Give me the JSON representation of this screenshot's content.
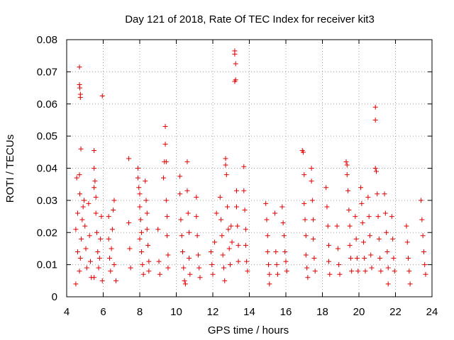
{
  "chart_data": {
    "type": "scatter",
    "title": "Day 121 of 2018, Rate Of TEC Index for receiver kit3",
    "xlabel": "GPS time / hours",
    "ylabel": "ROTI / TECUs",
    "xlim": [
      4,
      24
    ],
    "ylim": [
      0,
      0.08
    ],
    "xticks": [
      4,
      6,
      8,
      10,
      12,
      14,
      16,
      18,
      20,
      22,
      24
    ],
    "xtick_labels": [
      "4",
      "6",
      "8",
      "10",
      "12",
      "14",
      "16",
      "18",
      "20",
      "22",
      "24"
    ],
    "yticks": [
      0,
      0.01,
      0.02,
      0.03,
      0.04,
      0.05,
      0.06,
      0.07,
      0.08
    ],
    "ytick_labels": [
      "0",
      "0.01",
      "0.02",
      "0.03",
      "0.04",
      "0.05",
      "0.06",
      "0.07",
      "0.08"
    ],
    "grid": true,
    "marker": "plus",
    "color": "#e00000",
    "series": [
      {
        "name": "kit3",
        "points": [
          [
            4.5,
            0.004
          ],
          [
            4.5,
            0.021
          ],
          [
            4.55,
            0.037
          ],
          [
            4.6,
            0.014
          ],
          [
            4.6,
            0.026
          ],
          [
            4.7,
            0.0715
          ],
          [
            4.7,
            0.066
          ],
          [
            4.72,
            0.065
          ],
          [
            4.75,
            0.063
          ],
          [
            4.75,
            0.062
          ],
          [
            4.78,
            0.046
          ],
          [
            4.7,
            0.038
          ],
          [
            4.72,
            0.032
          ],
          [
            4.7,
            0.008
          ],
          [
            4.75,
            0.012
          ],
          [
            4.8,
            0.018
          ],
          [
            4.85,
            0.024
          ],
          [
            4.9,
            0.028
          ],
          [
            4.95,
            0.03
          ],
          [
            5.0,
            0.022
          ],
          [
            5.05,
            0.015
          ],
          [
            5.1,
            0.009
          ],
          [
            5.2,
            0.029
          ],
          [
            5.25,
            0.019
          ],
          [
            5.3,
            0.011
          ],
          [
            5.35,
            0.006
          ],
          [
            5.5,
            0.0455
          ],
          [
            5.5,
            0.04
          ],
          [
            5.55,
            0.036
          ],
          [
            5.5,
            0.034
          ],
          [
            5.6,
            0.031
          ],
          [
            5.6,
            0.026
          ],
          [
            5.65,
            0.02
          ],
          [
            5.7,
            0.014
          ],
          [
            5.75,
            0.009
          ],
          [
            5.8,
            0.012
          ],
          [
            5.85,
            0.018
          ],
          [
            5.5,
            0.006
          ],
          [
            5.95,
            0.0625
          ],
          [
            5.9,
            0.025
          ],
          [
            5.95,
            0.005
          ],
          [
            6.3,
            0.025
          ],
          [
            6.3,
            0.018
          ],
          [
            6.35,
            0.012
          ],
          [
            6.4,
            0.008
          ],
          [
            6.45,
            0.015
          ],
          [
            6.5,
            0.021
          ],
          [
            6.55,
            0.027
          ],
          [
            6.6,
            0.03
          ],
          [
            6.6,
            0.01
          ],
          [
            6.7,
            0.005
          ],
          [
            7.4,
            0.043
          ],
          [
            7.4,
            0.023
          ],
          [
            7.45,
            0.015
          ],
          [
            7.5,
            0.009
          ],
          [
            7.9,
            0.04
          ],
          [
            7.9,
            0.037
          ],
          [
            7.95,
            0.034
          ],
          [
            8.0,
            0.032
          ],
          [
            8.0,
            0.028
          ],
          [
            8.05,
            0.024
          ],
          [
            8.1,
            0.02
          ],
          [
            8.1,
            0.014
          ],
          [
            8.15,
            0.01
          ],
          [
            8.2,
            0.007
          ],
          [
            8.0,
            0.018
          ],
          [
            8.3,
            0.036
          ],
          [
            8.35,
            0.03
          ],
          [
            8.4,
            0.026
          ],
          [
            8.4,
            0.021
          ],
          [
            8.45,
            0.016
          ],
          [
            8.5,
            0.011
          ],
          [
            8.5,
            0.008
          ],
          [
            9.0,
            0.021
          ],
          [
            9.05,
            0.011
          ],
          [
            9.1,
            0.007
          ],
          [
            9.3,
            0.037
          ],
          [
            9.35,
            0.042
          ],
          [
            9.4,
            0.053
          ],
          [
            9.4,
            0.0475
          ],
          [
            9.45,
            0.042
          ],
          [
            9.45,
            0.03
          ],
          [
            9.5,
            0.025
          ],
          [
            9.5,
            0.019
          ],
          [
            9.55,
            0.013
          ],
          [
            9.55,
            0.009
          ],
          [
            10.2,
            0.0375
          ],
          [
            10.2,
            0.032
          ],
          [
            10.25,
            0.024
          ],
          [
            10.3,
            0.019
          ],
          [
            10.35,
            0.014
          ],
          [
            10.4,
            0.009
          ],
          [
            10.45,
            0.005
          ],
          [
            10.5,
            0.004
          ],
          [
            10.6,
            0.042
          ],
          [
            10.6,
            0.033
          ],
          [
            10.65,
            0.026
          ],
          [
            10.7,
            0.02
          ],
          [
            10.7,
            0.012
          ],
          [
            10.75,
            0.007
          ],
          [
            11.1,
            0.031
          ],
          [
            11.1,
            0.025
          ],
          [
            11.15,
            0.019
          ],
          [
            11.2,
            0.013
          ],
          [
            11.25,
            0.009
          ],
          [
            11.3,
            0.006
          ],
          [
            11.9,
            0.014
          ],
          [
            11.95,
            0.01
          ],
          [
            12.0,
            0.007
          ],
          [
            12.1,
            0.017
          ],
          [
            12.2,
            0.026
          ],
          [
            12.4,
            0.031
          ],
          [
            12.45,
            0.024
          ],
          [
            12.5,
            0.019
          ],
          [
            12.55,
            0.013
          ],
          [
            12.6,
            0.009
          ],
          [
            12.65,
            0.005
          ],
          [
            12.7,
            0.043
          ],
          [
            12.7,
            0.041
          ],
          [
            12.75,
            0.038
          ],
          [
            12.8,
            0.028
          ],
          [
            12.85,
            0.021
          ],
          [
            12.9,
            0.015
          ],
          [
            12.95,
            0.01
          ],
          [
            13.0,
            0.022
          ],
          [
            13.05,
            0.017
          ],
          [
            13.2,
            0.0765
          ],
          [
            13.2,
            0.0755
          ],
          [
            13.25,
            0.0725
          ],
          [
            13.25,
            0.0675
          ],
          [
            13.2,
            0.067
          ],
          [
            13.3,
            0.033
          ],
          [
            13.3,
            0.028
          ],
          [
            13.35,
            0.022
          ],
          [
            13.4,
            0.016
          ],
          [
            13.4,
            0.011
          ],
          [
            13.7,
            0.0405
          ],
          [
            13.7,
            0.033
          ],
          [
            13.75,
            0.027
          ],
          [
            13.8,
            0.021
          ],
          [
            13.8,
            0.016
          ],
          [
            13.85,
            0.011
          ],
          [
            13.9,
            0.008
          ],
          [
            14.9,
            0.029
          ],
          [
            14.95,
            0.024
          ],
          [
            15.0,
            0.019
          ],
          [
            15.0,
            0.014
          ],
          [
            15.05,
            0.01
          ],
          [
            15.1,
            0.007
          ],
          [
            15.1,
            0.004
          ],
          [
            15.4,
            0.026
          ],
          [
            15.45,
            0.014
          ],
          [
            15.5,
            0.01
          ],
          [
            15.55,
            0.007
          ],
          [
            15.8,
            0.028
          ],
          [
            15.85,
            0.023
          ],
          [
            15.9,
            0.019
          ],
          [
            15.95,
            0.014
          ],
          [
            16.0,
            0.011
          ],
          [
            16.05,
            0.008
          ],
          [
            16.9,
            0.0455
          ],
          [
            16.95,
            0.045
          ],
          [
            17.0,
            0.038
          ],
          [
            17.0,
            0.029
          ],
          [
            17.05,
            0.024
          ],
          [
            17.1,
            0.019
          ],
          [
            17.1,
            0.013
          ],
          [
            17.15,
            0.009
          ],
          [
            17.2,
            0.006
          ],
          [
            17.4,
            0.04
          ],
          [
            17.4,
            0.036
          ],
          [
            17.45,
            0.03
          ],
          [
            17.5,
            0.024
          ],
          [
            17.5,
            0.018
          ],
          [
            17.55,
            0.012
          ],
          [
            17.6,
            0.008
          ],
          [
            18.2,
            0.034
          ],
          [
            18.25,
            0.028
          ],
          [
            18.3,
            0.022
          ],
          [
            18.35,
            0.016
          ],
          [
            18.35,
            0.011
          ],
          [
            18.4,
            0.007
          ],
          [
            18.8,
            0.022
          ],
          [
            18.85,
            0.015
          ],
          [
            18.9,
            0.01
          ],
          [
            18.95,
            0.007
          ],
          [
            19.3,
            0.042
          ],
          [
            19.35,
            0.041
          ],
          [
            19.35,
            0.038
          ],
          [
            19.4,
            0.033
          ],
          [
            19.45,
            0.027
          ],
          [
            19.5,
            0.022
          ],
          [
            19.5,
            0.016
          ],
          [
            19.55,
            0.012
          ],
          [
            19.6,
            0.008
          ],
          [
            19.8,
            0.025
          ],
          [
            19.85,
            0.018
          ],
          [
            19.9,
            0.012
          ],
          [
            19.95,
            0.008
          ],
          [
            20.1,
            0.034
          ],
          [
            20.15,
            0.029
          ],
          [
            20.2,
            0.023
          ],
          [
            20.25,
            0.017
          ],
          [
            20.3,
            0.012
          ],
          [
            20.35,
            0.008
          ],
          [
            20.5,
            0.031
          ],
          [
            20.55,
            0.025
          ],
          [
            20.6,
            0.019
          ],
          [
            20.65,
            0.013
          ],
          [
            20.7,
            0.009
          ],
          [
            20.9,
            0.059
          ],
          [
            20.9,
            0.055
          ],
          [
            20.9,
            0.04
          ],
          [
            20.95,
            0.039
          ],
          [
            21.0,
            0.032
          ],
          [
            21.05,
            0.025
          ],
          [
            21.1,
            0.018
          ],
          [
            21.15,
            0.012
          ],
          [
            21.2,
            0.008
          ],
          [
            21.4,
            0.032
          ],
          [
            21.45,
            0.026
          ],
          [
            21.5,
            0.02
          ],
          [
            21.55,
            0.014
          ],
          [
            21.6,
            0.009
          ],
          [
            21.6,
            0.004
          ],
          [
            21.8,
            0.025
          ],
          [
            21.85,
            0.018
          ],
          [
            21.9,
            0.012
          ],
          [
            21.95,
            0.008
          ],
          [
            22.6,
            0.022
          ],
          [
            22.65,
            0.017
          ],
          [
            22.7,
            0.012
          ],
          [
            22.75,
            0.008
          ],
          [
            22.8,
            0.004
          ],
          [
            23.4,
            0.03
          ],
          [
            23.45,
            0.024
          ],
          [
            23.5,
            0.019
          ],
          [
            23.55,
            0.014
          ],
          [
            23.6,
            0.01
          ],
          [
            23.65,
            0.007
          ]
        ]
      }
    ]
  }
}
